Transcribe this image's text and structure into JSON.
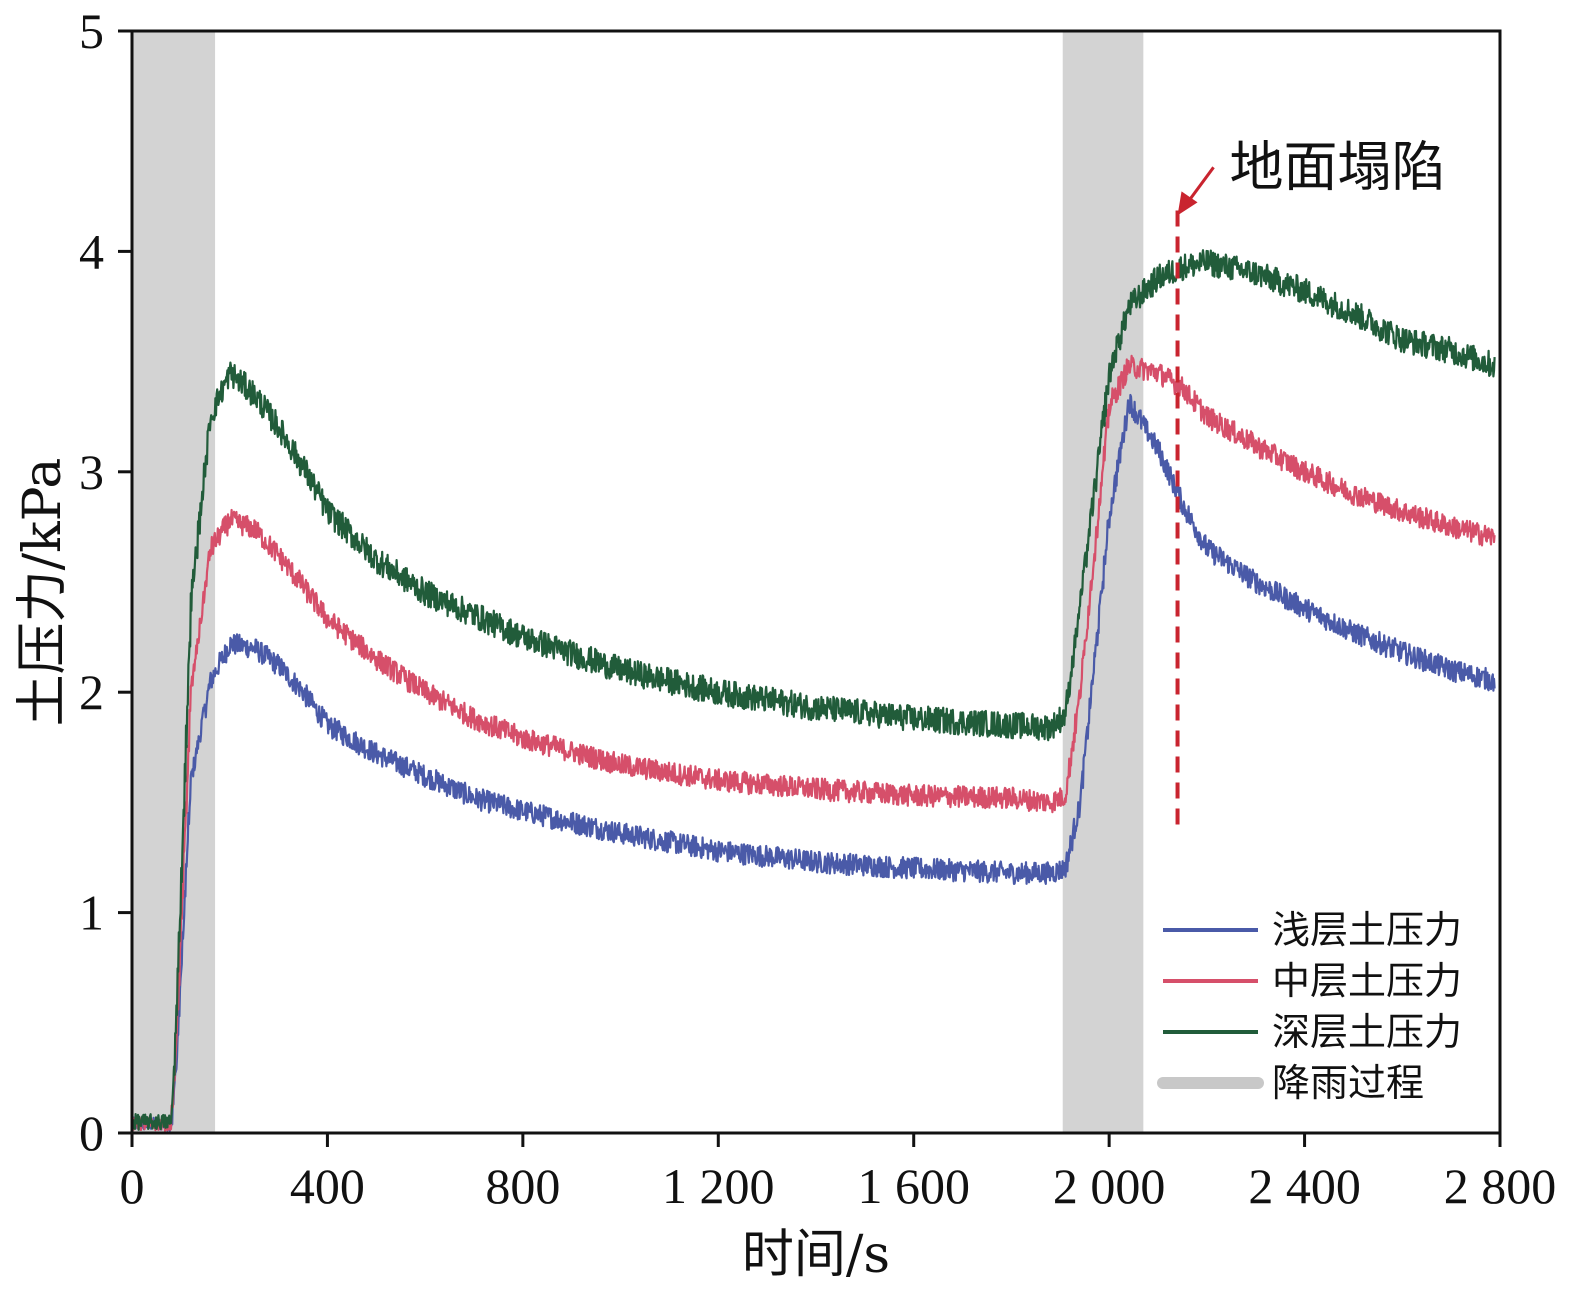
{
  "chart_data": {
    "type": "line",
    "title": "",
    "xlabel": "时间/s",
    "ylabel": "土压力/kPa",
    "xlim": [
      0,
      2800
    ],
    "ylim": [
      0,
      5
    ],
    "grid": false,
    "legend_position": "bottom-right",
    "x_ticks": [
      0,
      400,
      800,
      1200,
      1600,
      2000,
      2400,
      2800
    ],
    "x_tick_labels": [
      "0",
      "400",
      "800",
      "1 200",
      "1 600",
      "2 000",
      "2 400",
      "2 800"
    ],
    "y_ticks": [
      0,
      1,
      2,
      3,
      4,
      5
    ],
    "y_tick_labels": [
      "0",
      "1",
      "2",
      "3",
      "4",
      "5"
    ],
    "shaded_regions": [
      {
        "name": "降雨过程",
        "x_start": 0,
        "x_end": 170,
        "color": "#d3d3d3"
      },
      {
        "name": "降雨过程",
        "x_start": 1905,
        "x_end": 2070,
        "color": "#d3d3d3"
      }
    ],
    "series": [
      {
        "name": "浅层土压力",
        "color": "#4a5aa8",
        "noise": 0.05,
        "x": [
          0,
          80,
          90,
          120,
          160,
          200,
          250,
          300,
          350,
          400,
          500,
          600,
          700,
          800,
          1000,
          1200,
          1400,
          1600,
          1800,
          1880,
          1910,
          1940,
          2000,
          2040,
          2100,
          2150,
          2200,
          2300,
          2400,
          2500,
          2600,
          2700,
          2790
        ],
        "y": [
          0.04,
          0.04,
          0.3,
          1.6,
          2.05,
          2.22,
          2.2,
          2.12,
          2.0,
          1.85,
          1.72,
          1.62,
          1.52,
          1.46,
          1.36,
          1.28,
          1.23,
          1.2,
          1.18,
          1.18,
          1.2,
          1.5,
          2.8,
          3.32,
          3.1,
          2.85,
          2.65,
          2.5,
          2.38,
          2.27,
          2.18,
          2.1,
          2.05
        ]
      },
      {
        "name": "中层土压力",
        "color": "#d64f6a",
        "noise": 0.05,
        "x": [
          0,
          80,
          90,
          120,
          160,
          200,
          250,
          300,
          350,
          400,
          500,
          600,
          700,
          800,
          1000,
          1200,
          1400,
          1600,
          1800,
          1880,
          1910,
          1940,
          2000,
          2040,
          2100,
          2150,
          2200,
          2300,
          2400,
          2500,
          2600,
          2700,
          2790
        ],
        "y": [
          0.04,
          0.04,
          0.4,
          2.0,
          2.65,
          2.78,
          2.74,
          2.62,
          2.48,
          2.33,
          2.15,
          2.0,
          1.88,
          1.79,
          1.67,
          1.6,
          1.56,
          1.53,
          1.52,
          1.5,
          1.53,
          2.0,
          3.3,
          3.48,
          3.45,
          3.38,
          3.25,
          3.12,
          3.0,
          2.9,
          2.82,
          2.75,
          2.7
        ]
      },
      {
        "name": "深层土压力",
        "color": "#215c3a",
        "noise": 0.06,
        "x": [
          0,
          80,
          90,
          120,
          160,
          200,
          250,
          300,
          350,
          400,
          500,
          600,
          700,
          800,
          1000,
          1200,
          1400,
          1600,
          1800,
          1880,
          1910,
          1940,
          2000,
          2040,
          2100,
          2150,
          2200,
          2300,
          2400,
          2500,
          2600,
          2700,
          2790
        ],
        "y": [
          0.05,
          0.05,
          0.5,
          2.4,
          3.25,
          3.45,
          3.35,
          3.2,
          3.02,
          2.82,
          2.6,
          2.45,
          2.35,
          2.25,
          2.1,
          2.0,
          1.93,
          1.88,
          1.85,
          1.84,
          1.9,
          2.4,
          3.45,
          3.75,
          3.88,
          3.93,
          3.95,
          3.9,
          3.82,
          3.72,
          3.6,
          3.55,
          3.48
        ]
      }
    ],
    "annotations": [
      {
        "text": "地面塌陷",
        "x": 2140,
        "line_from_y": 1.4,
        "line_to_y": 4.2,
        "color": "#c9242f"
      }
    ],
    "legend": [
      {
        "label": "浅层土压力",
        "color": "#4a5aa8",
        "kind": "line"
      },
      {
        "label": "中层土压力",
        "color": "#d64f6a",
        "kind": "line"
      },
      {
        "label": "深层土压力",
        "color": "#215c3a",
        "kind": "line"
      },
      {
        "label": "降雨过程",
        "color": "#c8c8c8",
        "kind": "band"
      }
    ]
  }
}
